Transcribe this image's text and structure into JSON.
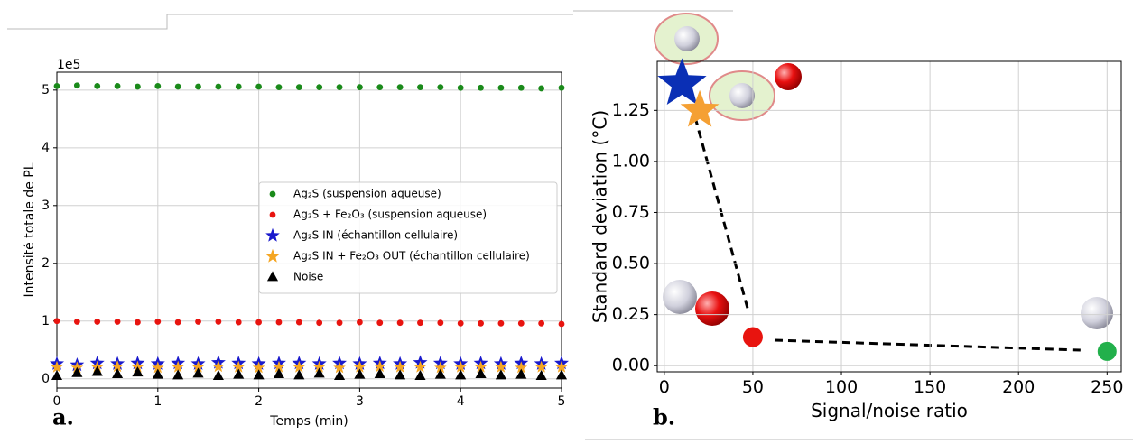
{
  "chart_data": [
    {
      "type": "scatter",
      "ylabel": "Intensité totale de PL",
      "xlabel": "Temps (min)",
      "y_offset_label": "1e5",
      "panel_label": "a.",
      "x": [
        0,
        0.2,
        0.4,
        0.6,
        0.8,
        1.0,
        1.2,
        1.4,
        1.6,
        1.8,
        2.0,
        2.2,
        2.4,
        2.6,
        2.8,
        3.0,
        3.2,
        3.4,
        3.6,
        3.8,
        4.0,
        4.2,
        4.4,
        4.6,
        4.8,
        5.0
      ],
      "series": [
        {
          "name": "Ag₂S (suspension aqueuse)",
          "color": "#1a8a1a",
          "marker": "circle",
          "values": [
            5.07,
            5.08,
            5.07,
            5.07,
            5.06,
            5.07,
            5.06,
            5.06,
            5.06,
            5.06,
            5.06,
            5.05,
            5.05,
            5.05,
            5.05,
            5.05,
            5.05,
            5.05,
            5.05,
            5.05,
            5.04,
            5.04,
            5.04,
            5.04,
            5.03,
            5.04
          ]
        },
        {
          "name": "Ag₂S + Fe₂O₃ (suspension aqueuse)",
          "color": "#e8140f",
          "marker": "circle",
          "values": [
            1.0,
            0.99,
            0.99,
            0.99,
            0.98,
            0.99,
            0.98,
            0.99,
            0.99,
            0.98,
            0.98,
            0.98,
            0.98,
            0.97,
            0.97,
            0.98,
            0.97,
            0.97,
            0.97,
            0.97,
            0.96,
            0.96,
            0.96,
            0.96,
            0.96,
            0.95
          ]
        },
        {
          "name": "Ag₂S IN (échantillon cellulaire)",
          "color": "#1a1acc",
          "marker": "star",
          "values": [
            0.26,
            0.24,
            0.27,
            0.26,
            0.27,
            0.26,
            0.27,
            0.26,
            0.28,
            0.27,
            0.26,
            0.27,
            0.27,
            0.26,
            0.27,
            0.26,
            0.27,
            0.26,
            0.28,
            0.27,
            0.26,
            0.27,
            0.26,
            0.27,
            0.26,
            0.27
          ]
        },
        {
          "name": "Ag₂S IN + Fe₂O₃ OUT (échantillon cellulaire)",
          "color": "#f5a623",
          "marker": "star",
          "values": [
            0.2,
            0.19,
            0.2,
            0.21,
            0.2,
            0.19,
            0.2,
            0.2,
            0.21,
            0.2,
            0.19,
            0.2,
            0.2,
            0.2,
            0.19,
            0.2,
            0.21,
            0.2,
            0.2,
            0.19,
            0.2,
            0.2,
            0.2,
            0.19,
            0.2,
            0.2
          ]
        },
        {
          "name": "Noise",
          "color": "#000000",
          "marker": "triangle",
          "values": [
            0.05,
            0.1,
            0.12,
            0.08,
            0.11,
            0.07,
            0.06,
            0.09,
            0.05,
            0.07,
            0.06,
            0.08,
            0.06,
            0.09,
            0.05,
            0.07,
            0.08,
            0.06,
            0.05,
            0.07,
            0.06,
            0.08,
            0.06,
            0.07,
            0.05,
            0.06
          ]
        }
      ],
      "xlim": [
        0,
        5
      ],
      "ylim": [
        -0.16,
        5.31
      ],
      "xticks": [
        0,
        1,
        2,
        3,
        4,
        5
      ],
      "yticks": [
        0,
        1,
        2,
        3,
        4,
        5
      ],
      "grid": true,
      "legend": "center right"
    },
    {
      "type": "scatter",
      "ylabel": "Standard deviation (°C)",
      "xlabel": "Signal/noise ratio",
      "panel_label": "b.",
      "x": [
        10,
        20,
        50,
        250
      ],
      "y": [
        1.38,
        1.25,
        0.14,
        0.07
      ],
      "colors": [
        "#0a2fb5",
        "#f5a033",
        "#e8140f",
        "#22b04b"
      ],
      "markers": [
        "star",
        "star",
        "circle",
        "circle"
      ],
      "xlim": [
        -4,
        258
      ],
      "ylim": [
        -0.03,
        1.49
      ],
      "xticks": [
        0,
        50,
        100,
        150,
        200,
        250
      ],
      "yticks": [
        {
          "value": 0,
          "label": "0.00"
        },
        {
          "value": 0.25,
          "label": "0.25"
        },
        {
          "value": 0.5,
          "label": "0.50"
        },
        {
          "value": 0.75,
          "label": "0.75"
        },
        {
          "value": 1.0,
          "label": "1.00"
        },
        {
          "value": 1.25,
          "label": "1.25"
        }
      ],
      "grid": true
    }
  ]
}
